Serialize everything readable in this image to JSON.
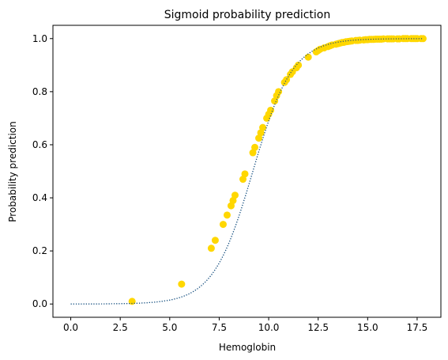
{
  "chart_data": {
    "type": "scatter",
    "title": "Sigmoid probability prediction",
    "xlabel": "Hemoglobin",
    "ylabel": "Probability prediction",
    "xlim": [
      -0.9,
      18.7
    ],
    "ylim": [
      -0.05,
      1.05
    ],
    "xticks": [
      "0.0",
      "2.5",
      "5.0",
      "7.5",
      "10.0",
      "12.5",
      "15.0",
      "17.5"
    ],
    "yticks": [
      "0.0",
      "0.2",
      "0.4",
      "0.6",
      "0.8",
      "1.0"
    ],
    "grid": false,
    "legend": "none",
    "curve": {
      "style": "dotted",
      "color": "#1f77b4",
      "x_range": [
        0,
        17.8
      ],
      "midpoint": 9.2,
      "slope": 1.0
    },
    "points": {
      "color": "#ffd700",
      "x": [
        3.1,
        5.6,
        7.1,
        7.3,
        7.7,
        7.9,
        8.1,
        8.2,
        8.3,
        8.7,
        8.8,
        9.2,
        9.3,
        9.5,
        9.6,
        9.7,
        9.9,
        10.0,
        10.1,
        10.3,
        10.4,
        10.5,
        10.8,
        10.9,
        11.1,
        11.2,
        11.4,
        11.5,
        12.0,
        12.4,
        12.5,
        12.6,
        12.8,
        13.0,
        13.1,
        13.2,
        13.4,
        13.5,
        13.6,
        13.7,
        13.8,
        13.9,
        14.0,
        14.1,
        14.2,
        14.4,
        14.5,
        14.6,
        14.8,
        14.9,
        15.0,
        15.1,
        15.2,
        15.3,
        15.4,
        15.5,
        15.6,
        15.7,
        15.8,
        16.0,
        16.1,
        16.2,
        16.3,
        16.5,
        16.6,
        16.8,
        16.9,
        17.0,
        17.2,
        17.3,
        17.4,
        17.5,
        17.7,
        17.8
      ],
      "y": [
        0.01,
        0.075,
        0.21,
        0.24,
        0.3,
        0.335,
        0.37,
        0.39,
        0.41,
        0.47,
        0.49,
        0.57,
        0.59,
        0.625,
        0.645,
        0.665,
        0.7,
        0.715,
        0.73,
        0.765,
        0.785,
        0.8,
        0.835,
        0.845,
        0.865,
        0.875,
        0.89,
        0.9,
        0.93,
        0.95,
        0.955,
        0.96,
        0.965,
        0.97,
        0.973,
        0.976,
        0.979,
        0.981,
        0.983,
        0.985,
        0.986,
        0.988,
        0.989,
        0.99,
        0.991,
        0.993,
        0.993,
        0.994,
        0.995,
        0.996,
        0.996,
        0.997,
        0.997,
        0.997,
        0.998,
        0.998,
        0.998,
        0.998,
        0.999,
        0.999,
        0.999,
        0.999,
        0.999,
        0.999,
        0.999,
        1.0,
        1.0,
        1.0,
        1.0,
        1.0,
        1.0,
        1.0,
        1.0,
        1.0
      ]
    }
  }
}
